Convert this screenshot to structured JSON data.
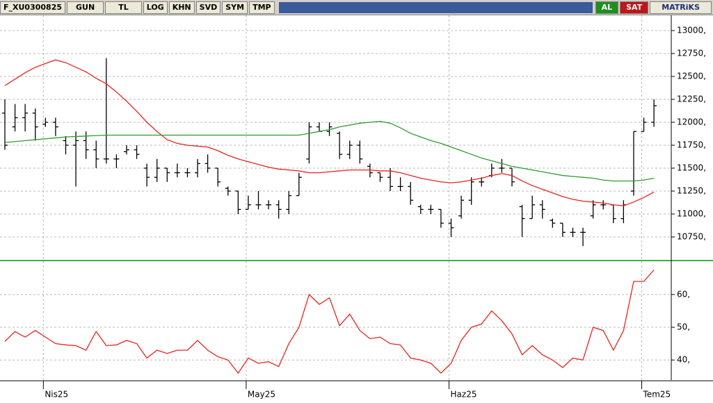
{
  "toolbar": {
    "symbol": "F_XU0300825",
    "period": "GUN",
    "currency": "TL",
    "buttons": [
      "LOG",
      "KHN",
      "SVD",
      "SYM",
      "TMP"
    ],
    "buy": "AL",
    "sell": "SAT",
    "brand": "MATRiKS"
  },
  "chart_data": [
    {
      "type": "ohlc",
      "categories": [
        null,
        null,
        null,
        null,
        "Nis25",
        null,
        null,
        null,
        null,
        null,
        null,
        null,
        null,
        null,
        null,
        null,
        null,
        null,
        null,
        null,
        null,
        null,
        null,
        null,
        "May25",
        null,
        null,
        null,
        null,
        null,
        null,
        null,
        null,
        null,
        null,
        null,
        null,
        null,
        null,
        null,
        null,
        null,
        null,
        null,
        "Haz25",
        null,
        null,
        null,
        null,
        null,
        null,
        null,
        null,
        null,
        null,
        null,
        null,
        null,
        null,
        null,
        null,
        null,
        null,
        "Tem25",
        null
      ],
      "open": [
        12100,
        11950,
        12050,
        12100,
        11980,
        12000,
        11800,
        11750,
        11800,
        11700,
        11600,
        11600,
        11680,
        11700,
        11500,
        11400,
        11500,
        11450,
        11450,
        11450,
        11550,
        11500,
        11280,
        11250,
        11050,
        11100,
        11100,
        11100,
        11050,
        11200,
        11600,
        11950,
        11900,
        11880,
        11650,
        11750,
        11520,
        11450,
        11400,
        11300,
        11300,
        11080,
        11050,
        11050,
        10900,
        10980,
        11150,
        11350,
        11420,
        11500,
        11500,
        11080,
        10950,
        11100,
        10930,
        10900,
        10800,
        10800,
        10980,
        11100,
        11100,
        10950,
        11250,
        11900,
        12000
      ],
      "high": [
        12250,
        12200,
        12200,
        12150,
        12050,
        12050,
        11850,
        11900,
        11900,
        11800,
        12700,
        11650,
        11750,
        11750,
        11550,
        11600,
        11500,
        11550,
        11500,
        11600,
        11650,
        11500,
        11300,
        11250,
        11200,
        11250,
        11150,
        11150,
        11250,
        11450,
        12000,
        12000,
        12000,
        11900,
        11800,
        11800,
        11550,
        11450,
        11500,
        11400,
        11350,
        11100,
        11100,
        11050,
        10950,
        11200,
        11400,
        11400,
        11550,
        11600,
        11500,
        11100,
        11200,
        11150,
        10950,
        10900,
        10850,
        10850,
        11150,
        11150,
        11100,
        11150,
        11900,
        12050,
        12250
      ],
      "low": [
        11700,
        11900,
        11900,
        11800,
        11950,
        11850,
        11650,
        11300,
        11600,
        11500,
        11550,
        11500,
        11650,
        11600,
        11300,
        11350,
        11350,
        11400,
        11400,
        11400,
        11450,
        11300,
        11200,
        11000,
        11050,
        11050,
        11050,
        10950,
        11000,
        11200,
        11550,
        11900,
        11850,
        11600,
        11600,
        11550,
        11400,
        11350,
        11250,
        11250,
        11100,
        11000,
        11000,
        10850,
        10750,
        10950,
        11100,
        11300,
        11400,
        11450,
        11300,
        10750,
        10950,
        10950,
        10850,
        10750,
        10750,
        10650,
        10950,
        11050,
        10900,
        10900,
        11200,
        11900,
        11950
      ],
      "close": [
        11750,
        12050,
        12100,
        11950,
        12000,
        11950,
        11750,
        11800,
        11700,
        11600,
        11600,
        11600,
        11700,
        11650,
        11400,
        11500,
        11450,
        11450,
        11450,
        11550,
        11500,
        11350,
        11250,
        11050,
        11100,
        11100,
        11100,
        11050,
        11200,
        11400,
        11950,
        11900,
        11950,
        11650,
        11750,
        11600,
        11450,
        11400,
        11300,
        11300,
        11150,
        11050,
        11050,
        10900,
        10850,
        11150,
        11350,
        11350,
        11500,
        11500,
        11350,
        10950,
        11100,
        11050,
        10900,
        10800,
        10800,
        10800,
        11100,
        11100,
        10950,
        11100,
        11900,
        12000,
        12180
      ],
      "color": "#000000",
      "series": [
        {
          "color": "#e8231f",
          "values": [
            12400,
            12470,
            12540,
            12600,
            12640,
            12680,
            12650,
            12600,
            12550,
            12480,
            12420,
            12330,
            12230,
            12120,
            12000,
            11900,
            11810,
            11770,
            11750,
            11740,
            11730,
            11690,
            11640,
            11600,
            11570,
            11540,
            11510,
            11490,
            11480,
            11470,
            11450,
            11450,
            11460,
            11470,
            11480,
            11480,
            11480,
            11470,
            11470,
            11450,
            11420,
            11390,
            11370,
            11350,
            11340,
            11350,
            11370,
            11390,
            11420,
            11440,
            11420,
            11360,
            11310,
            11270,
            11230,
            11190,
            11160,
            11140,
            11130,
            11120,
            11100,
            11090,
            11130,
            11180,
            11240
          ]
        },
        {
          "color": "#2e9a2e",
          "values": [
            11780,
            11790,
            11800,
            11810,
            11820,
            11830,
            11840,
            11845,
            11850,
            11855,
            11860,
            11860,
            11860,
            11860,
            11860,
            11860,
            11860,
            11860,
            11860,
            11860,
            11860,
            11860,
            11860,
            11860,
            11860,
            11860,
            11860,
            11860,
            11860,
            11860,
            11880,
            11900,
            11920,
            11950,
            11970,
            11990,
            12000,
            12010,
            11990,
            11940,
            11880,
            11840,
            11800,
            11770,
            11730,
            11690,
            11650,
            11610,
            11580,
            11550,
            11520,
            11500,
            11480,
            11460,
            11440,
            11420,
            11410,
            11400,
            11390,
            11370,
            11360,
            11360,
            11360,
            11370,
            11390
          ]
        }
      ],
      "ylim": [
        10515,
        13144
      ],
      "yticks": [
        {
          "value": 10750,
          "label": "10750,"
        },
        {
          "value": 11000,
          "label": "11000,"
        },
        {
          "value": 11250,
          "label": "11250,"
        },
        {
          "value": 11500,
          "label": "11500,"
        },
        {
          "value": 11750,
          "label": "11750,"
        },
        {
          "value": 12000,
          "label": "12000,"
        },
        {
          "value": 12250,
          "label": "12250,"
        },
        {
          "value": 12500,
          "label": "12500,"
        },
        {
          "value": 12750,
          "label": "12750,"
        },
        {
          "value": 13000,
          "label": "13000,"
        }
      ],
      "grid": true
    },
    {
      "type": "line",
      "series": [
        {
          "color": "#e8231f",
          "values": [
            45.7,
            48.7,
            47,
            49,
            47,
            45,
            44.6,
            44.4,
            43,
            48.7,
            44.4,
            44.6,
            46,
            45,
            40.6,
            43,
            42,
            43,
            43,
            46,
            43,
            41,
            40,
            36,
            40.6,
            39,
            39.5,
            38,
            45,
            50,
            60,
            57,
            59,
            50.5,
            54,
            49,
            46.5,
            47,
            45,
            44.6,
            40.6,
            40,
            39,
            36,
            39,
            46,
            50,
            51,
            55,
            52,
            48,
            41.6,
            44.4,
            41.6,
            40,
            37.7,
            40.6,
            40,
            50,
            49,
            43,
            49,
            64,
            64,
            67.5
          ]
        }
      ],
      "ylim": [
        34.3,
        71
      ],
      "yticks": [
        {
          "value": 40,
          "label": "40,"
        },
        {
          "value": 50,
          "label": "50,"
        },
        {
          "value": 60,
          "label": "60,"
        }
      ],
      "grid": true
    }
  ]
}
